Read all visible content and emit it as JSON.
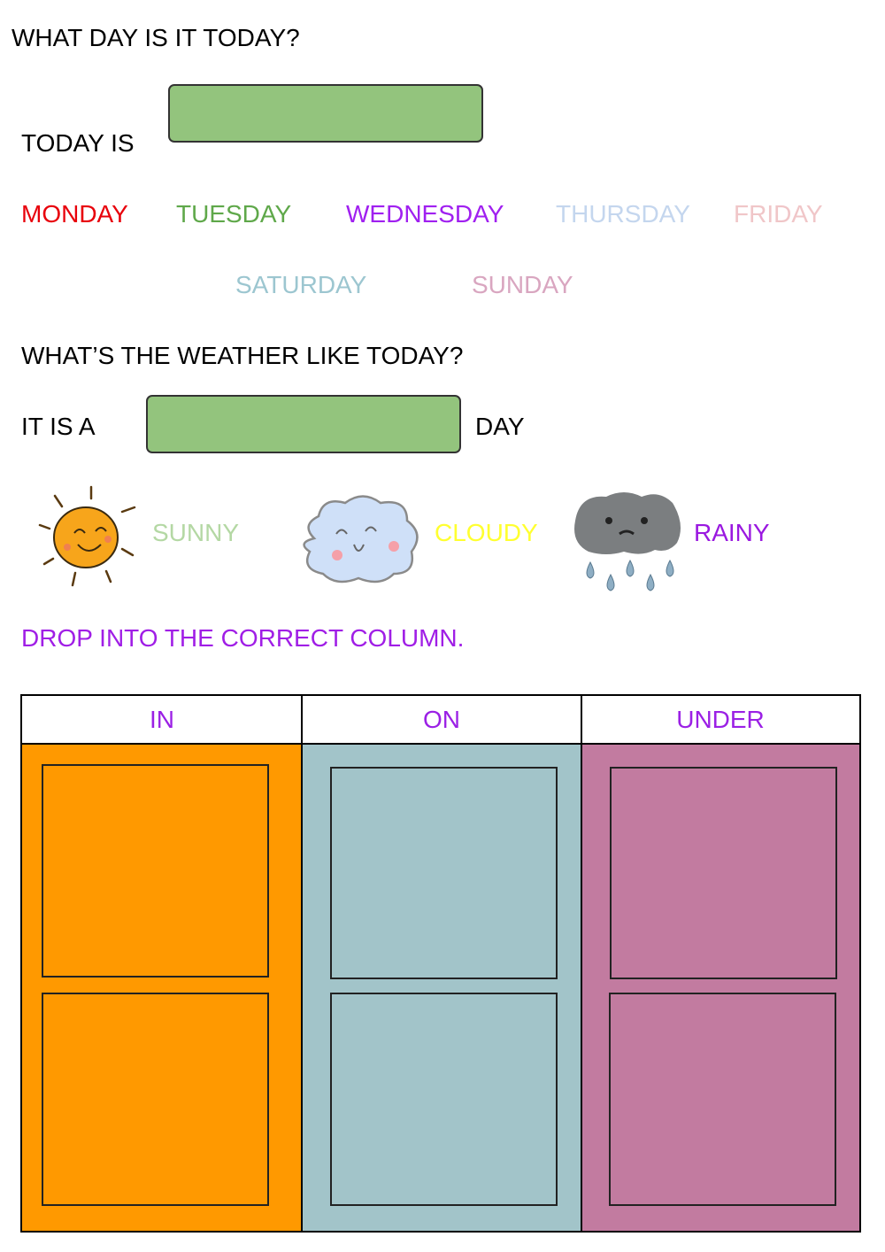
{
  "q1": "WHAT DAY IS IT TODAY?",
  "today_is": "TODAY IS",
  "days": [
    {
      "label": "MONDAY",
      "color": "#e8000b"
    },
    {
      "label": "TUESDAY",
      "color": "#5fa84a"
    },
    {
      "label": "WEDNESDAY",
      "color": "#a020f0"
    },
    {
      "label": "THURSDAY",
      "color": "#c4d6ee"
    },
    {
      "label": "FRIDAY",
      "color": "#f0c6c8"
    },
    {
      "label": "SATURDAY",
      "color": "#9cc6d0"
    },
    {
      "label": "SUNDAY",
      "color": "#d9a6c0"
    }
  ],
  "q2": "WHAT’S THE WEATHER LIKE TODAY?",
  "it_is_a": "IT IS A",
  "day": "DAY",
  "weather": [
    {
      "label": "SUNNY",
      "color": "#b4d8a4",
      "icon": "sun-icon"
    },
    {
      "label": "CLOUDY",
      "color": "#ffff30",
      "icon": "cloud-icon"
    },
    {
      "label": "RAINY",
      "color": "#9a18e0",
      "icon": "rain-cloud-icon"
    }
  ],
  "instruction": "DROP INTO THE CORRECT COLUMN.",
  "columns": [
    {
      "label": "IN",
      "color": "#ff9900"
    },
    {
      "label": "ON",
      "color": "#a2c4c9"
    },
    {
      "label": "UNDER",
      "color": "#c27ba0"
    }
  ],
  "drop_box_color": "#93c47d"
}
